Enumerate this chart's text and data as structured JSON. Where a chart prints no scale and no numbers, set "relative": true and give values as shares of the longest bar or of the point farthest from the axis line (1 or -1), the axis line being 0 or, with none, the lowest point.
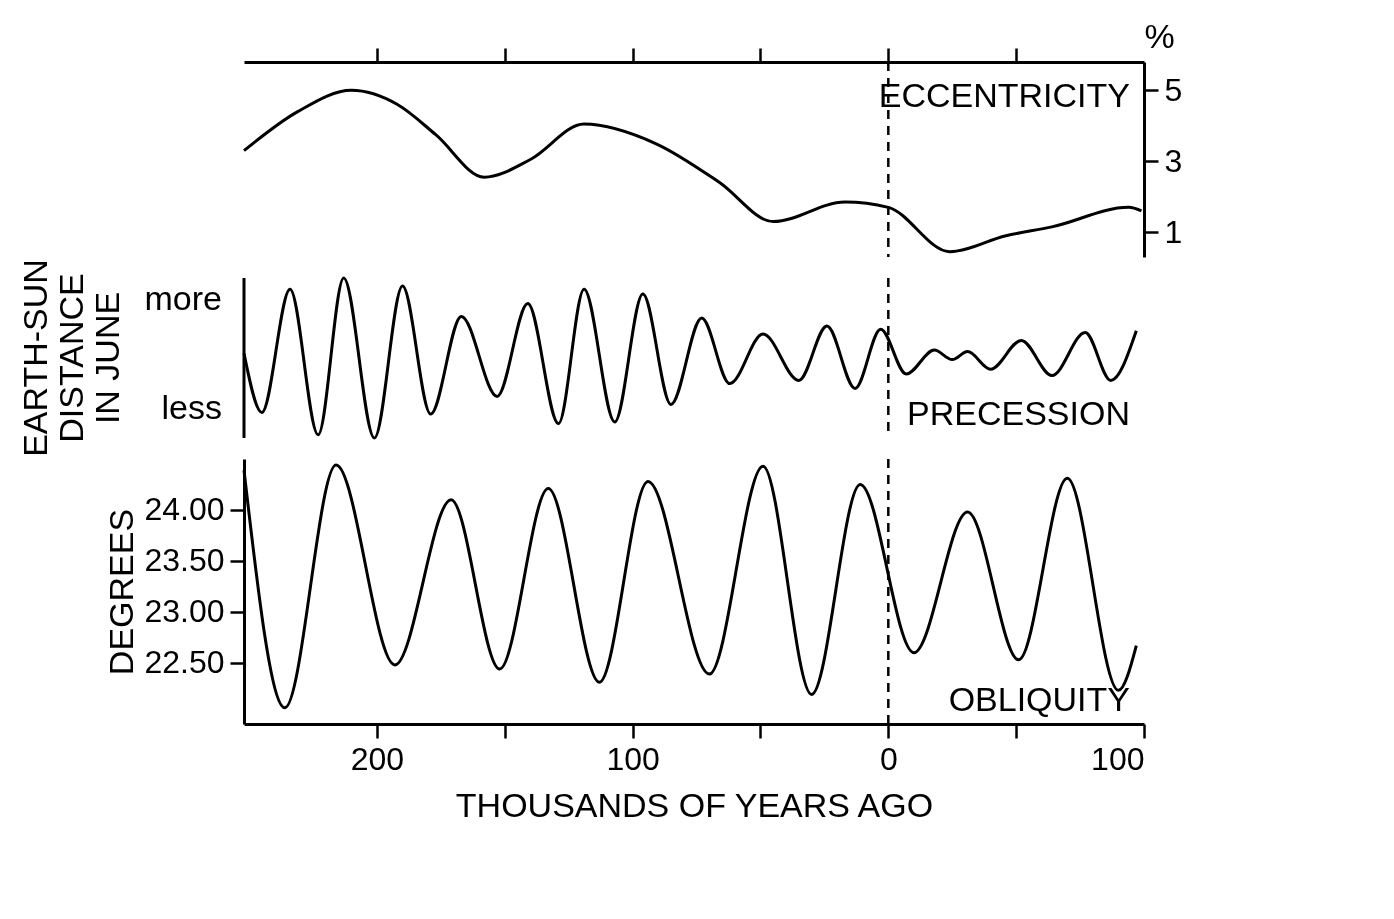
{
  "chart_data": [
    {
      "type": "line",
      "y2label": "%",
      "xlim": [
        -252,
        100
      ],
      "xticks": [
        {
          "value": -200,
          "label": null
        },
        {
          "value": -150,
          "label": null
        },
        {
          "value": -100,
          "label": null
        },
        {
          "value": -50,
          "label": null
        },
        {
          "value": 0,
          "label": null
        },
        {
          "value": 50,
          "label": null
        }
      ],
      "y2lim": [
        0.3,
        5.8
      ],
      "y2ticks": [
        1,
        3,
        5
      ],
      "tick_labels": "y",
      "x": [
        -252,
        -231,
        -210,
        -192,
        -177,
        -158,
        -140,
        -119,
        -91,
        -66,
        -45,
        -17,
        0,
        24,
        46,
        64,
        94,
        99
      ],
      "series": [
        {
          "name": "ECCENTRICITY",
          "color": "#000000",
          "axis": "y2",
          "values": [
            3.3,
            4.4,
            5.0,
            4.6,
            3.75,
            2.55,
            3.05,
            4.05,
            3.5,
            2.4,
            1.3,
            1.85,
            1.7,
            0.45,
            0.9,
            1.15,
            1.7,
            1.6
          ]
        }
      ],
      "ref_lines": [
        {
          "axis": "x",
          "value": 0,
          "line_style": "dashed",
          "color": "#000000"
        }
      ]
    },
    {
      "type": "line",
      "relative": true,
      "ylabel": "EARTH-SUN DISTANCE IN JUNE",
      "xlim": [
        -252,
        100
      ],
      "tick_labels": false,
      "annotations": [
        "more",
        "less"
      ],
      "x": [
        -252,
        -245,
        -234,
        -223,
        -213,
        -201,
        -190,
        -179,
        -167,
        -153,
        -141,
        -129,
        -119,
        -107,
        -96,
        -85,
        -73,
        -62,
        -49,
        -35,
        -24,
        -13,
        -3,
        7,
        18,
        25,
        31,
        40,
        52,
        64,
        77,
        87,
        97
      ],
      "series": [
        {
          "name": "PRECESSION",
          "color": "#000000",
          "values": [
            0.53,
            0.16,
            0.93,
            0.02,
            1,
            0,
            0.95,
            0.15,
            0.76,
            0.26,
            0.84,
            0.09,
            0.93,
            0.1,
            0.9,
            0.21,
            0.75,
            0.34,
            0.65,
            0.36,
            0.7,
            0.31,
            0.68,
            0.4,
            0.55,
            0.49,
            0.54,
            0.43,
            0.61,
            0.39,
            0.66,
            0.36,
            0.67
          ]
        }
      ],
      "ref_lines": [
        {
          "axis": "x",
          "value": 0,
          "line_style": "dashed",
          "color": "#000000"
        }
      ]
    },
    {
      "type": "line",
      "ylabel": "DEGREES",
      "xlabel": "THOUSANDS OF YEARS AGO",
      "xlim": [
        -252,
        100
      ],
      "xticks": [
        {
          "value": -200,
          "label": "200"
        },
        {
          "value": -150,
          "label": null
        },
        {
          "value": -100,
          "label": "100"
        },
        {
          "value": -50,
          "label": null
        },
        {
          "value": 0,
          "label": "0"
        },
        {
          "value": 50,
          "label": null
        },
        {
          "value": 100,
          "label": "100"
        }
      ],
      "ylim": [
        21.9,
        24.5
      ],
      "yticks": [
        {
          "value": 22.5,
          "label": "22.50"
        },
        {
          "value": 23,
          "label": "23.00"
        },
        {
          "value": 23.5,
          "label": "23.50"
        },
        {
          "value": 24,
          "label": "24.00"
        }
      ],
      "x": [
        -252,
        -236,
        -216,
        -193,
        -171,
        -152,
        -133,
        -113,
        -94,
        -70,
        -49,
        -30,
        -11,
        10,
        31,
        51,
        70,
        90,
        97
      ],
      "series": [
        {
          "name": "OBLIQUITY",
          "color": "#000000",
          "values": [
            24.39,
            22.06,
            24.44,
            22.48,
            24.1,
            22.44,
            24.21,
            22.31,
            24.28,
            22.39,
            24.43,
            22.19,
            24.25,
            22.6,
            23.98,
            22.53,
            24.31,
            22.23,
            22.67
          ]
        }
      ],
      "ref_lines": [
        {
          "axis": "x",
          "value": 0,
          "line_style": "dashed",
          "color": "#000000"
        }
      ]
    }
  ]
}
